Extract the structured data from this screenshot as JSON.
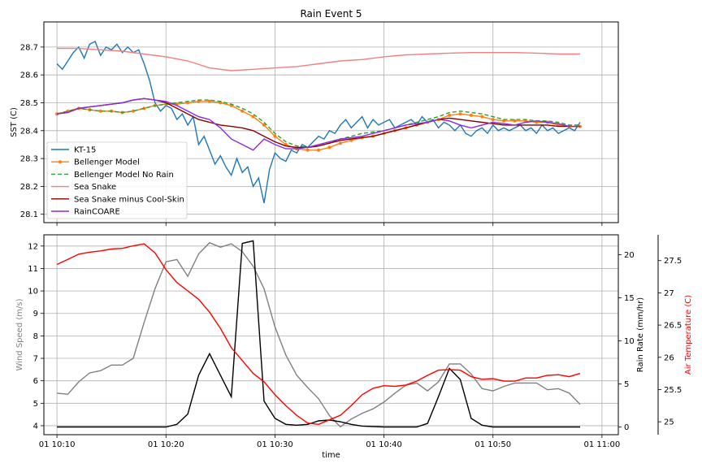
{
  "chart_data": [
    {
      "type": "line",
      "title": "Rain Event 5",
      "ylabel": "SST (C)",
      "xlabel": "",
      "ylim": [
        28.07,
        28.79
      ],
      "yticks": [
        28.1,
        28.2,
        28.3,
        28.4,
        28.5,
        28.6,
        28.7
      ],
      "xlim": [
        8.8,
        61.5
      ],
      "grid": true,
      "legend": "lower-left",
      "series": [
        {
          "name": "KT-15",
          "color": "#1f77b4",
          "style": "solid",
          "marker": false,
          "x": [
            10,
            10.5,
            11,
            11.5,
            12,
            12.5,
            13,
            13.5,
            14,
            14.5,
            15,
            15.5,
            16,
            16.5,
            17,
            17.5,
            18,
            18.5,
            19,
            19.5,
            20,
            20.5,
            21,
            21.5,
            22,
            22.5,
            23,
            23.5,
            24,
            24.5,
            25,
            25.5,
            26,
            26.5,
            27,
            27.5,
            28,
            28.5,
            29,
            29.5,
            30,
            30.5,
            31,
            31.5,
            32,
            32.5,
            33,
            33.5,
            34,
            34.5,
            35,
            35.5,
            36,
            36.5,
            37,
            37.5,
            38,
            38.5,
            39,
            39.5,
            40,
            40.5,
            41,
            41.5,
            42,
            42.5,
            43,
            43.5,
            44,
            44.5,
            45,
            45.5,
            46,
            46.5,
            47,
            47.5,
            48,
            48.5,
            49,
            49.5,
            50,
            50.5,
            51,
            51.5,
            52,
            52.5,
            53,
            53.5,
            54,
            54.5,
            55,
            55.5,
            56,
            56.5,
            57,
            57.5,
            58
          ],
          "y": [
            28.64,
            28.62,
            28.65,
            28.68,
            28.7,
            28.66,
            28.71,
            28.72,
            28.67,
            28.7,
            28.69,
            28.71,
            28.68,
            28.7,
            28.68,
            28.69,
            28.64,
            28.58,
            28.5,
            28.47,
            28.49,
            28.48,
            28.44,
            28.46,
            28.42,
            28.45,
            28.35,
            28.38,
            28.33,
            28.28,
            28.31,
            28.27,
            28.24,
            28.3,
            28.25,
            28.27,
            28.2,
            28.23,
            28.14,
            28.26,
            28.32,
            28.3,
            28.29,
            28.33,
            28.32,
            28.35,
            28.34,
            28.36,
            28.38,
            28.37,
            28.4,
            28.39,
            28.42,
            28.44,
            28.41,
            28.43,
            28.45,
            28.41,
            28.44,
            28.42,
            28.43,
            28.44,
            28.41,
            28.42,
            28.43,
            28.44,
            28.42,
            28.45,
            28.43,
            28.44,
            28.41,
            28.43,
            28.42,
            28.4,
            28.42,
            28.39,
            28.38,
            28.4,
            28.41,
            28.39,
            28.42,
            28.4,
            28.41,
            28.4,
            28.41,
            28.42,
            28.4,
            28.41,
            28.39,
            28.42,
            28.4,
            28.41,
            28.39,
            28.4,
            28.41,
            28.4,
            28.43
          ]
        },
        {
          "name": "Bellenger Model",
          "color": "#ff7f0e",
          "style": "solid",
          "marker": true,
          "x": [
            10,
            11,
            12,
            13,
            14,
            15,
            16,
            17,
            18,
            19,
            20,
            21,
            22,
            23,
            24,
            25,
            26,
            27,
            28,
            29,
            30,
            31,
            32,
            33,
            34,
            35,
            36,
            37,
            38,
            39,
            40,
            41,
            42,
            43,
            44,
            45,
            46,
            47,
            48,
            49,
            50,
            51,
            52,
            53,
            54,
            55,
            56,
            57,
            58
          ],
          "y": [
            28.46,
            28.47,
            28.48,
            28.475,
            28.47,
            28.47,
            28.465,
            28.47,
            28.48,
            28.49,
            28.495,
            28.495,
            28.5,
            28.505,
            28.505,
            28.5,
            28.49,
            28.47,
            28.45,
            28.42,
            28.38,
            28.35,
            28.335,
            28.33,
            28.33,
            28.34,
            28.355,
            28.365,
            28.375,
            28.38,
            28.39,
            28.4,
            28.41,
            28.42,
            28.43,
            28.44,
            28.455,
            28.46,
            28.455,
            28.45,
            28.44,
            28.435,
            28.435,
            28.435,
            28.43,
            28.43,
            28.42,
            28.415,
            28.415
          ]
        },
        {
          "name": "Bellenger Model No Rain",
          "color": "#2ca02c",
          "style": "dashed",
          "marker": false,
          "x": [
            10,
            11,
            12,
            13,
            14,
            15,
            16,
            17,
            18,
            19,
            20,
            21,
            22,
            23,
            24,
            25,
            26,
            27,
            28,
            29,
            30,
            31,
            32,
            33,
            34,
            35,
            36,
            37,
            38,
            39,
            40,
            41,
            42,
            43,
            44,
            45,
            46,
            47,
            48,
            49,
            50,
            51,
            52,
            53,
            54,
            55,
            56,
            57,
            58
          ],
          "y": [
            28.46,
            28.47,
            28.48,
            28.475,
            28.47,
            28.47,
            28.465,
            28.47,
            28.48,
            28.49,
            28.495,
            28.5,
            28.505,
            28.51,
            28.51,
            28.505,
            28.495,
            28.48,
            28.46,
            28.43,
            28.39,
            28.36,
            28.345,
            28.34,
            28.345,
            28.355,
            28.37,
            28.38,
            28.39,
            28.395,
            28.4,
            28.41,
            28.42,
            28.43,
            28.44,
            28.45,
            28.465,
            28.47,
            28.465,
            28.46,
            28.45,
            28.44,
            28.44,
            28.44,
            28.435,
            28.435,
            28.43,
            28.42,
            28.42
          ]
        },
        {
          "name": "Sea Snake",
          "color": "#f08080",
          "style": "solid",
          "marker": false,
          "x": [
            10,
            12,
            14,
            16,
            18,
            20,
            22,
            24,
            26,
            28,
            30,
            32,
            34,
            36,
            38,
            40,
            42,
            44,
            46,
            48,
            50,
            52,
            54,
            56,
            58
          ],
          "y": [
            28.695,
            28.695,
            28.69,
            28.685,
            28.675,
            28.665,
            28.65,
            28.625,
            28.615,
            28.62,
            28.625,
            28.63,
            28.64,
            28.65,
            28.655,
            28.665,
            28.672,
            28.675,
            28.678,
            28.68,
            28.68,
            28.68,
            28.678,
            28.675,
            28.675
          ]
        },
        {
          "name": "Sea Snake minus Cool-Skin",
          "color": "#8b0000",
          "style": "solid",
          "marker": false,
          "x": [
            10,
            11,
            12,
            13,
            14,
            15,
            16,
            17,
            18,
            19,
            20,
            21,
            22,
            23,
            24,
            25,
            26,
            27,
            28,
            29,
            30,
            31,
            32,
            33,
            34,
            35,
            36,
            37,
            38,
            39,
            40,
            41,
            42,
            43,
            44,
            45,
            46,
            47,
            48,
            49,
            50,
            51,
            52,
            53,
            54,
            55,
            56,
            57,
            58
          ],
          "y": [
            28.46,
            28.465,
            28.48,
            28.485,
            28.49,
            28.495,
            28.5,
            28.51,
            28.515,
            28.51,
            28.5,
            28.48,
            28.46,
            28.44,
            28.43,
            28.42,
            28.415,
            28.41,
            28.4,
            28.38,
            28.36,
            28.345,
            28.34,
            28.34,
            28.345,
            28.355,
            28.365,
            28.37,
            28.375,
            28.38,
            28.39,
            28.4,
            28.41,
            28.42,
            28.43,
            28.44,
            28.445,
            28.44,
            28.435,
            28.43,
            28.425,
            28.42,
            28.42,
            28.42,
            28.42,
            28.42,
            28.415,
            28.415,
            28.415
          ]
        },
        {
          "name": "RainCOARE",
          "color": "#8a2be2",
          "style": "solid",
          "marker": false,
          "x": [
            10,
            11,
            12,
            13,
            14,
            15,
            16,
            17,
            18,
            19,
            20,
            21,
            22,
            23,
            24,
            25,
            26,
            27,
            28,
            29,
            30,
            31,
            32,
            33,
            34,
            35,
            36,
            37,
            38,
            39,
            40,
            41,
            42,
            43,
            44,
            45,
            46,
            47,
            48,
            49,
            50,
            51,
            52,
            53,
            54,
            55,
            56,
            57,
            58
          ],
          "y": [
            28.46,
            28.465,
            28.48,
            28.485,
            28.49,
            28.495,
            28.5,
            28.51,
            28.515,
            28.51,
            28.505,
            28.49,
            28.47,
            28.45,
            28.44,
            28.41,
            28.37,
            28.35,
            28.33,
            28.37,
            28.35,
            28.335,
            28.335,
            28.34,
            28.35,
            28.36,
            28.37,
            28.375,
            28.38,
            28.39,
            28.4,
            28.41,
            28.42,
            28.425,
            28.43,
            28.44,
            28.435,
            28.42,
            28.41,
            28.42,
            28.43,
            28.425,
            28.42,
            28.43,
            28.435,
            28.43,
            28.425,
            28.415,
            28.415
          ]
        }
      ]
    },
    {
      "type": "line",
      "xlabel": "time",
      "xlim": [
        8.8,
        61.5
      ],
      "xticks": [
        10,
        20,
        30,
        40,
        50,
        60
      ],
      "xticklabels": [
        "01 10:10",
        "01 10:20",
        "01 10:30",
        "01 10:40",
        "01 10:50",
        "01 11:00"
      ],
      "grid": true,
      "axes": [
        {
          "id": "wind",
          "ylabel": "Wind Speed (m/s)",
          "color": "#808080",
          "ylim": [
            3.6,
            12.5
          ],
          "yticks": [
            4,
            5,
            6,
            7,
            8,
            9,
            10,
            11,
            12
          ]
        },
        {
          "id": "rain",
          "ylabel": "Rain Rate (mm/hr)",
          "color": "#000000",
          "ylim": [
            -0.9,
            22.3
          ],
          "yticks": [
            0,
            5,
            10,
            15,
            20
          ]
        },
        {
          "id": "air",
          "ylabel": "Air Temperature (C)",
          "color": "#ff0000",
          "ylim": [
            24.8,
            27.9
          ],
          "yticks": [
            25.0,
            25.5,
            26.0,
            26.5,
            27.0,
            27.5
          ]
        }
      ],
      "series": [
        {
          "name": "Wind Speed",
          "axis": "wind",
          "color": "#808080",
          "x": [
            10,
            11,
            12,
            13,
            14,
            15,
            16,
            17,
            18,
            19,
            20,
            21,
            22,
            23,
            24,
            25,
            26,
            27,
            28,
            29,
            30,
            31,
            32,
            33,
            34,
            35,
            36,
            37,
            38,
            39,
            40,
            41,
            42,
            43,
            44,
            45,
            46,
            47,
            48,
            49,
            50,
            51,
            52,
            53,
            54,
            55,
            56,
            57,
            58
          ],
          "y": [
            5.45,
            5.4,
            5.95,
            6.35,
            6.45,
            6.7,
            6.7,
            7.0,
            8.6,
            10.1,
            11.3,
            11.4,
            10.65,
            11.65,
            12.15,
            11.95,
            12.1,
            11.75,
            11.1,
            10.1,
            8.4,
            7.15,
            6.25,
            5.7,
            5.2,
            4.45,
            3.95,
            4.3,
            4.55,
            4.75,
            5.05,
            5.45,
            5.8,
            5.9,
            5.55,
            5.95,
            6.75,
            6.75,
            6.3,
            5.65,
            5.55,
            5.75,
            5.9,
            5.9,
            5.9,
            5.6,
            5.65,
            5.45,
            4.95
          ]
        },
        {
          "name": "Rain Rate",
          "axis": "rain",
          "color": "#000000",
          "x": [
            10,
            12,
            14,
            16,
            18,
            20,
            21,
            22,
            23,
            24,
            25,
            26,
            27,
            28,
            29,
            30,
            31,
            32,
            33,
            34,
            35,
            36,
            37,
            38,
            40,
            42,
            43,
            44,
            45,
            46,
            47,
            48,
            49,
            50,
            52,
            54,
            56,
            58
          ],
          "y": [
            0,
            0,
            0,
            0,
            0,
            0,
            0.3,
            1.5,
            6.0,
            8.5,
            6.0,
            3.5,
            21.3,
            21.6,
            3.0,
            1.0,
            0.3,
            0.2,
            0.3,
            0.7,
            0.8,
            0.6,
            0.3,
            0.1,
            0,
            0,
            0,
            0.4,
            3.5,
            6.8,
            5.5,
            1.0,
            0.2,
            0,
            0,
            0,
            0,
            0
          ]
        },
        {
          "name": "Air Temperature",
          "axis": "air",
          "color": "#ff0000",
          "x": [
            10,
            11,
            12,
            13,
            14,
            15,
            16,
            17,
            18,
            19,
            20,
            21,
            22,
            23,
            24,
            25,
            26,
            27,
            28,
            29,
            30,
            31,
            32,
            33,
            34,
            35,
            36,
            37,
            38,
            39,
            40,
            41,
            42,
            43,
            44,
            45,
            46,
            47,
            48,
            49,
            50,
            51,
            52,
            53,
            54,
            55,
            56,
            57,
            58
          ],
          "y": [
            27.44,
            27.52,
            27.6,
            27.63,
            27.65,
            27.68,
            27.69,
            27.73,
            27.76,
            27.62,
            27.36,
            27.16,
            27.03,
            26.9,
            26.7,
            26.45,
            26.15,
            25.95,
            25.75,
            25.62,
            25.42,
            25.25,
            25.1,
            24.98,
            24.96,
            25.03,
            25.1,
            25.25,
            25.42,
            25.52,
            25.56,
            25.55,
            25.57,
            25.63,
            25.72,
            25.8,
            25.81,
            25.8,
            25.7,
            25.66,
            25.67,
            25.63,
            25.63,
            25.68,
            25.68,
            25.72,
            25.73,
            25.7,
            25.75
          ]
        }
      ]
    }
  ]
}
